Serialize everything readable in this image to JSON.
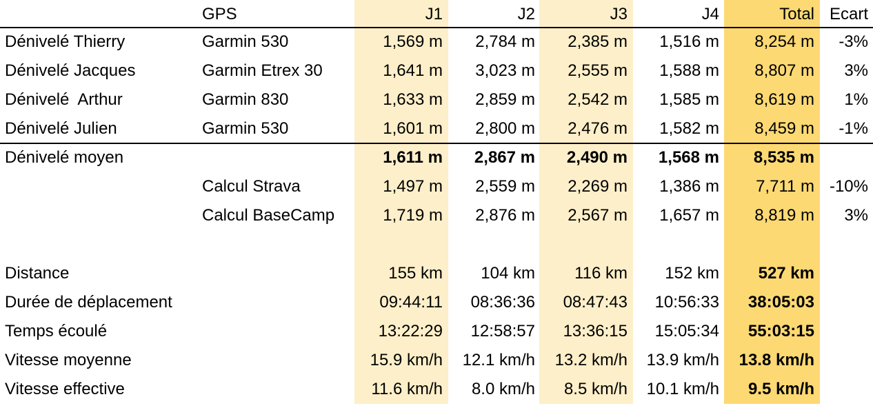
{
  "headers": {
    "label": "",
    "gps": "GPS",
    "j1": "J1",
    "j2": "J2",
    "j3": "J3",
    "j4": "J4",
    "total": "Total",
    "ecart": "Ecart"
  },
  "rows": [
    {
      "label": "Dénivelé Thierry",
      "gps": "Garmin 530",
      "j1": "1,569 m",
      "j2": "2,784 m",
      "j3": "2,385 m",
      "j4": "1,516 m",
      "total": "8,254 m",
      "ecart": "-3%"
    },
    {
      "label": "Dénivelé Jacques",
      "gps": "Garmin Etrex 30",
      "j1": "1,641 m",
      "j2": "3,023 m",
      "j3": "2,555 m",
      "j4": "1,588 m",
      "total": "8,807 m",
      "ecart": "3%"
    },
    {
      "label": "Dénivelé  Arthur",
      "gps": "Garmin 830",
      "j1": "1,633 m",
      "j2": "2,859 m",
      "j3": "2,542 m",
      "j4": "1,585 m",
      "total": "8,619 m",
      "ecart": "1%"
    },
    {
      "label": "Dénivelé Julien",
      "gps": "Garmin 530",
      "j1": "1,601 m",
      "j2": "2,800 m",
      "j3": "2,476 m",
      "j4": "1,582 m",
      "total": "8,459 m",
      "ecart": "-1%"
    },
    {
      "label": "Dénivelé moyen",
      "gps": "",
      "j1": "1,611 m",
      "j2": "2,867 m",
      "j3": "2,490 m",
      "j4": "1,568 m",
      "total": "8,535 m",
      "ecart": ""
    },
    {
      "label": "",
      "gps": "Calcul Strava",
      "j1": "1,497 m",
      "j2": "2,559 m",
      "j3": "2,269 m",
      "j4": "1,386 m",
      "total": "7,711 m",
      "ecart": "-10%"
    },
    {
      "label": "",
      "gps": "Calcul BaseCamp",
      "j1": "1,719 m",
      "j2": "2,876 m",
      "j3": "2,567 m",
      "j4": "1,657 m",
      "total": "8,819 m",
      "ecart": "3%"
    },
    {
      "label": "Distance",
      "gps": "",
      "j1": "155 km",
      "j2": "104 km",
      "j3": "116 km",
      "j4": "152 km",
      "total": "527 km",
      "ecart": ""
    },
    {
      "label": "Durée de déplacement",
      "gps": "",
      "j1": "09:44:11",
      "j2": "08:36:36",
      "j3": "08:47:43",
      "j4": "10:56:33",
      "total": "38:05:03",
      "ecart": ""
    },
    {
      "label": "Temps écoulé",
      "gps": "",
      "j1": "13:22:29",
      "j2": "12:58:57",
      "j3": "13:36:15",
      "j4": "15:05:34",
      "total": "55:03:15",
      "ecart": ""
    },
    {
      "label": "Vitesse moyenne",
      "gps": "",
      "j1": "15.9 km/h",
      "j2": "12.1 km/h",
      "j3": "13.2 km/h",
      "j4": "13.9 km/h",
      "total": "13.8 km/h",
      "ecart": ""
    },
    {
      "label": "Vitesse effective",
      "gps": "",
      "j1": "11.6 km/h",
      "j2": "8.0 km/h",
      "j3": "8.5 km/h",
      "j4": "10.1 km/h",
      "total": "9.5 km/h",
      "ecart": ""
    }
  ]
}
